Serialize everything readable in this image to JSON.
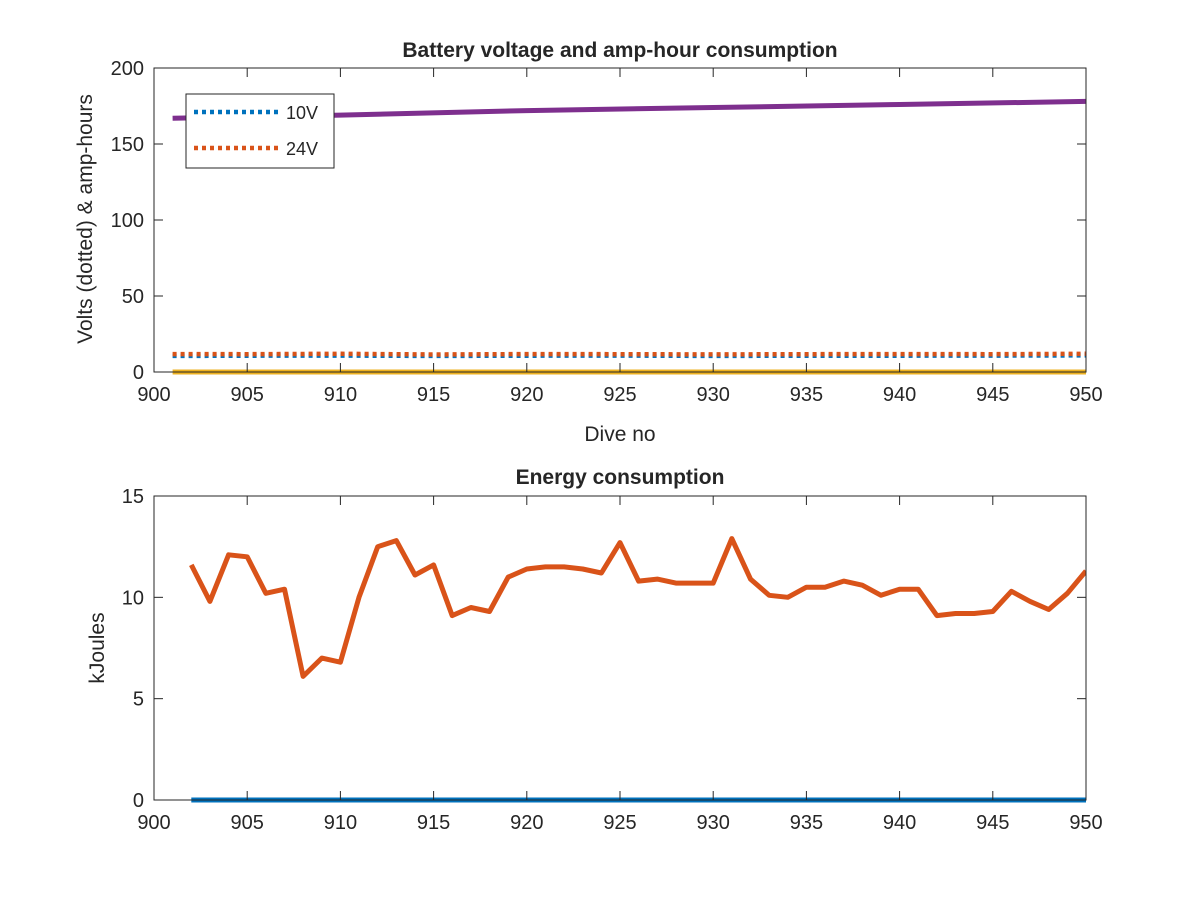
{
  "colors": {
    "blue": "#0072BD",
    "orange": "#D95319",
    "yellow": "#EDB120",
    "purple": "#7E2F8E",
    "axis": "#262626"
  },
  "chart_data": [
    {
      "type": "line",
      "title": "Battery voltage and amp-hour consumption",
      "xlabel": "Dive no",
      "ylabel": "Volts (dotted) & amp-hours",
      "xlim": [
        900,
        950
      ],
      "ylim": [
        0,
        200
      ],
      "xticks": [
        "900",
        "905",
        "910",
        "915",
        "920",
        "925",
        "930",
        "935",
        "940",
        "945",
        "950"
      ],
      "yticks": [
        "0",
        "50",
        "100",
        "150",
        "200"
      ],
      "legend_position": "top-left",
      "legend": [
        "10V",
        "24V"
      ],
      "series": [
        {
          "name": "10V",
          "style": "dotted",
          "color": "blue",
          "x": [
            901,
            905,
            910,
            915,
            920,
            925,
            930,
            935,
            940,
            945,
            950
          ],
          "y": [
            10.6,
            10.7,
            10.8,
            10.6,
            10.7,
            10.8,
            10.6,
            10.7,
            10.7,
            10.8,
            10.9
          ]
        },
        {
          "name": "24V",
          "style": "dotted",
          "color": "orange",
          "x": [
            901,
            905,
            910,
            915,
            920,
            925,
            930,
            935,
            940,
            945,
            950
          ],
          "y": [
            11.8,
            11.7,
            12.0,
            11.5,
            11.8,
            11.7,
            11.6,
            11.7,
            11.8,
            11.7,
            12.0
          ]
        },
        {
          "style": "solid",
          "color": "purple",
          "x": [
            901,
            910,
            920,
            930,
            940,
            950
          ],
          "y": [
            167,
            169,
            172,
            174,
            176,
            178
          ]
        },
        {
          "style": "solid",
          "color": "yellow",
          "x": [
            901,
            950
          ],
          "y": [
            0,
            0
          ]
        }
      ]
    },
    {
      "type": "line",
      "title": "Energy consumption",
      "xlabel": "",
      "ylabel": "kJoules",
      "xlim": [
        900,
        950
      ],
      "ylim": [
        0,
        15
      ],
      "xticks": [
        "900",
        "905",
        "910",
        "915",
        "920",
        "925",
        "930",
        "935",
        "940",
        "945",
        "950"
      ],
      "yticks": [
        "0",
        "5",
        "10",
        "15"
      ],
      "series": [
        {
          "style": "solid",
          "color": "orange",
          "x": [
            902,
            903,
            904,
            905,
            906,
            907,
            908,
            909,
            910,
            911,
            912,
            913,
            914,
            915,
            916,
            917,
            918,
            919,
            920,
            921,
            922,
            923,
            924,
            925,
            926,
            927,
            928,
            929,
            930,
            931,
            932,
            933,
            934,
            935,
            936,
            937,
            938,
            939,
            940,
            941,
            942,
            943,
            944,
            945,
            946,
            947,
            948,
            949,
            950
          ],
          "y": [
            11.6,
            9.8,
            12.1,
            12.0,
            10.2,
            10.4,
            6.1,
            7.0,
            6.8,
            10.0,
            12.5,
            12.8,
            11.1,
            11.6,
            9.1,
            9.5,
            9.3,
            11.0,
            11.4,
            11.5,
            11.5,
            11.4,
            11.2,
            12.7,
            10.8,
            10.9,
            10.7,
            10.7,
            10.7,
            12.9,
            10.9,
            10.1,
            10.0,
            10.5,
            10.5,
            10.8,
            10.6,
            10.1,
            10.4,
            10.4,
            9.1,
            9.2,
            9.2,
            9.3,
            10.3,
            9.8,
            9.4,
            10.2,
            11.3
          ]
        },
        {
          "style": "solid",
          "color": "blue",
          "x": [
            902,
            950
          ],
          "y": [
            0,
            0
          ]
        }
      ]
    }
  ]
}
